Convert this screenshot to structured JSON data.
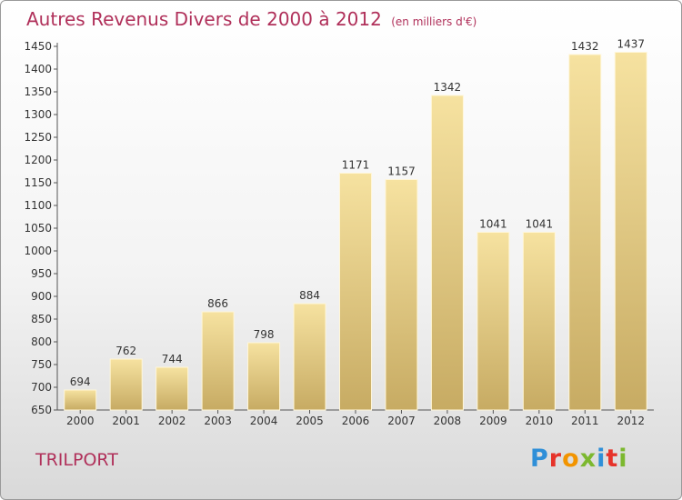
{
  "title": "Autres Revenus Divers de 2000 à 2012",
  "title_unit": "(en milliers d'€)",
  "commune": "TRILPORT",
  "logo": {
    "text": "Proxiti",
    "colors": [
      "#2f8fd8",
      "#e6332a",
      "#f29400",
      "#7cb82f",
      "#2f8fd8",
      "#e6332a",
      "#7cb82f"
    ]
  },
  "colors": {
    "title": "#b0305a",
    "bar_light": "#f6e2a0",
    "bar_dark": "#c7ab63"
  },
  "chart_data": {
    "type": "bar",
    "title": "Autres Revenus Divers de 2000 à 2012",
    "categories": [
      "2000",
      "2001",
      "2002",
      "2003",
      "2004",
      "2005",
      "2006",
      "2007",
      "2008",
      "2009",
      "2010",
      "2011",
      "2012"
    ],
    "values": [
      694,
      762,
      744,
      866,
      798,
      884,
      1171,
      1157,
      1342,
      1041,
      1041,
      1432,
      1437
    ],
    "ylim": [
      650,
      1450
    ],
    "yticks": [
      650,
      700,
      750,
      800,
      850,
      900,
      950,
      1000,
      1050,
      1100,
      1150,
      1200,
      1250,
      1300,
      1350,
      1400,
      1450
    ],
    "grid": false,
    "legend": "none"
  }
}
